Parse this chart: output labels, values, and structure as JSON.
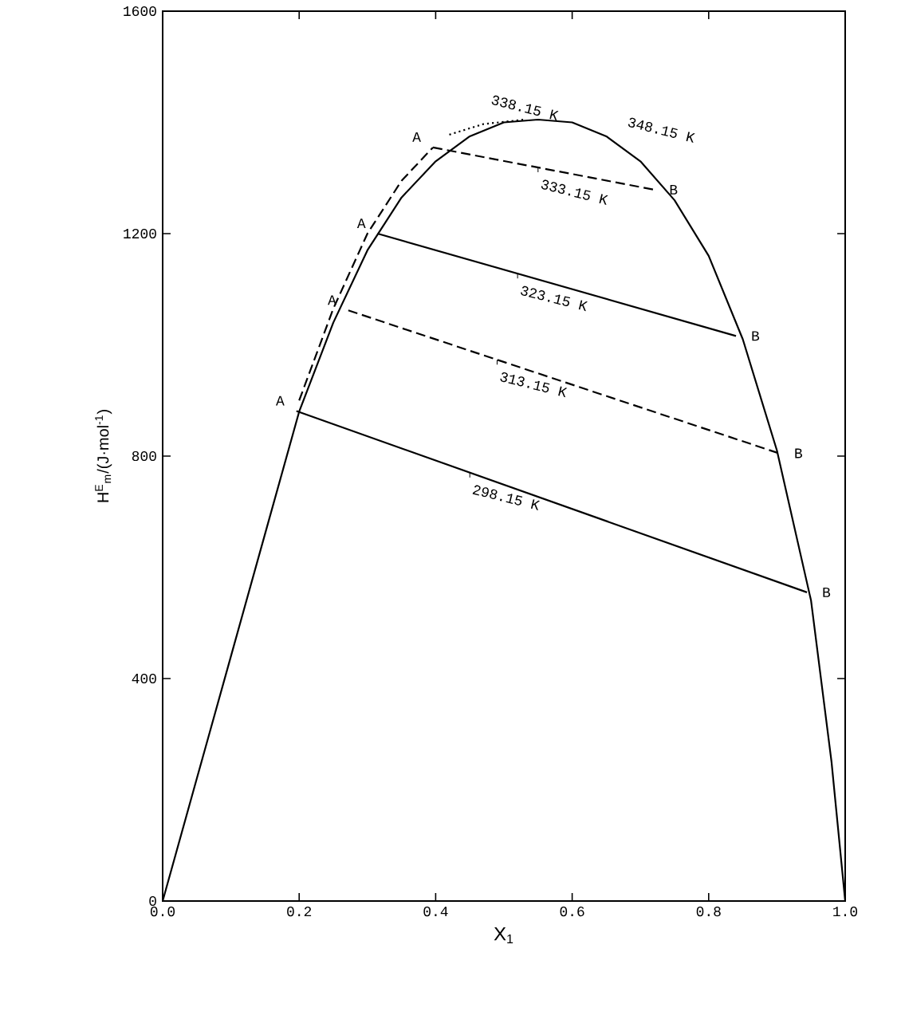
{
  "chart_data": {
    "type": "line",
    "xlabel": "X$_{1}$",
    "ylabel": "H$^{E}$$_{m}$/(J·mol$^{-1}$)",
    "xlim": [
      0,
      1
    ],
    "ylim": [
      0,
      1600
    ],
    "xticks": [
      {
        "value": 0,
        "label": "0.0"
      },
      {
        "value": 0.2,
        "label": "0.2"
      },
      {
        "value": 0.4,
        "label": "0.4"
      },
      {
        "value": 0.6,
        "label": "0.6"
      },
      {
        "value": 0.8,
        "label": "0.8"
      },
      {
        "value": 1,
        "label": "1.0"
      }
    ],
    "yticks": [
      0,
      400,
      800,
      1200,
      1600
    ],
    "grid": false,
    "marker": "none",
    "series": [
      {
        "color": "#000000",
        "line_style": "solid",
        "x": [
          0,
          0.05,
          0.1,
          0.15,
          0.2,
          0.25,
          0.3,
          0.35,
          0.4,
          0.45,
          0.5,
          0.55,
          0.6,
          0.65,
          0.7,
          0.75,
          0.8,
          0.85,
          0.9,
          0.95,
          0.98,
          1.0
        ],
        "values": [
          0,
          220,
          440,
          660,
          880,
          1040,
          1170,
          1265,
          1330,
          1375,
          1400,
          1405,
          1400,
          1375,
          1330,
          1260,
          1160,
          1010,
          810,
          540,
          250,
          0
        ]
      },
      {
        "color": "#000000",
        "line_style": "dashed",
        "x": [
          0.2,
          0.25,
          0.3,
          0.35,
          0.396
        ],
        "values": [
          900,
          1065,
          1200,
          1295,
          1355
        ]
      },
      {
        "color": "#000000",
        "line_style": "dotted",
        "x": [
          0.42,
          0.47,
          0.53
        ],
        "values": [
          1378,
          1397,
          1405
        ]
      },
      {
        "color": "#000000",
        "line_style": "solid",
        "x": [
          0.196,
          0.944
        ],
        "values": [
          881,
          555
        ]
      },
      {
        "color": "#000000",
        "line_style": "dashed",
        "x": [
          0.272,
          0.903
        ],
        "values": [
          1062,
          805
        ]
      },
      {
        "color": "#000000",
        "line_style": "solid",
        "x": [
          0.315,
          0.84
        ],
        "values": [
          1200,
          1016
        ]
      },
      {
        "color": "#000000",
        "line_style": "dashed",
        "x": [
          0.396,
          0.72
        ],
        "values": [
          1355,
          1279
        ]
      }
    ],
    "annotations": [
      {
        "text": "298.15 K",
        "x": 0.45,
        "y": 770
      },
      {
        "text": "313.15 K",
        "x": 0.49,
        "y": 973
      },
      {
        "text": "323.15 K",
        "x": 0.52,
        "y": 1128
      },
      {
        "text": "333.15 K",
        "x": 0.55,
        "y": 1319
      },
      {
        "text": "338.15 K",
        "x": 0.47,
        "y": 1397
      },
      {
        "text": "348.15 K",
        "x": 0.67,
        "y": 1357
      },
      {
        "text": "A",
        "x": 0.196,
        "y": 881
      },
      {
        "text": "A",
        "x": 0.272,
        "y": 1062
      },
      {
        "text": "A",
        "x": 0.315,
        "y": 1200
      },
      {
        "text": "A",
        "x": 0.396,
        "y": 1355
      },
      {
        "text": "B",
        "x": 0.944,
        "y": 555
      },
      {
        "text": "B",
        "x": 0.903,
        "y": 805
      },
      {
        "text": "B",
        "x": 0.84,
        "y": 1016
      },
      {
        "text": "B",
        "x": 0.72,
        "y": 1279
      }
    ]
  }
}
